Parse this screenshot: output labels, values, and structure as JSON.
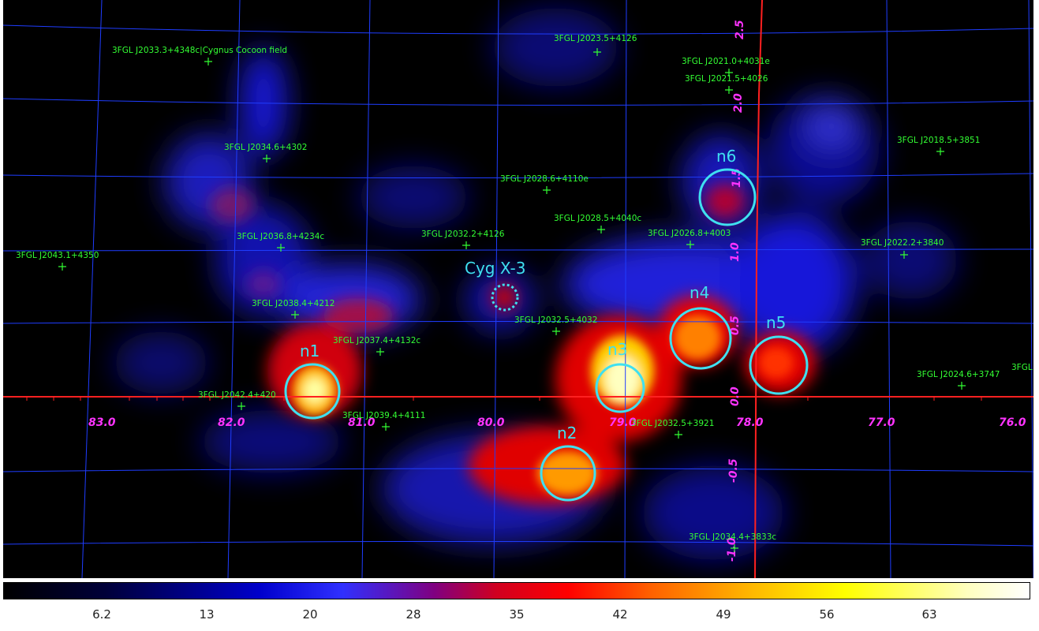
{
  "sources": [
    {
      "label": "3FGL J2033.3+4348c|Cygnus Cocoon field"
    },
    {
      "label": "3FGL J2023.5+4126"
    },
    {
      "label": "3FGL J2021.0+4031e"
    },
    {
      "label": "3FGL J2021.5+4026"
    },
    {
      "label": "3FGL J2034.6+4302"
    },
    {
      "label": "3FGL J2018.5+3851"
    },
    {
      "label": "3FGL J2028.6+4110e"
    },
    {
      "label": "3FGL J2028.5+4040c"
    },
    {
      "label": "3FGL J2036.8+4234c"
    },
    {
      "label": "3FGL J2032.2+4126"
    },
    {
      "label": "3FGL J2026.8+4003"
    },
    {
      "label": "3FGL J2022.2+3840"
    },
    {
      "label": "3FGL J2043.1+4350"
    },
    {
      "label": "3FGL J2038.4+4212"
    },
    {
      "label": "3FGL J2032.5+4032"
    },
    {
      "label": "3FGL J2037.4+4132c"
    },
    {
      "label": "3FGL J2024.6+3747"
    },
    {
      "label": "3FGL J2042.4+420"
    },
    {
      "label": "3FGL J2039.4+4111"
    },
    {
      "label": "3FGL J2032.5+3921"
    },
    {
      "label": "3FGL J2034.4+3833c"
    },
    {
      "label": "3FGL"
    }
  ],
  "regions": [
    {
      "label": "n1"
    },
    {
      "label": "n2"
    },
    {
      "label": "n3"
    },
    {
      "label": "n4"
    },
    {
      "label": "n5"
    },
    {
      "label": "n6"
    },
    {
      "label": "Cyg X-3"
    }
  ],
  "axes": {
    "gl_labels": [
      "83.0",
      "82.0",
      "81.0",
      "80.0",
      "79.0",
      "78.0",
      "77.0",
      "76.0"
    ],
    "gb_labels": [
      "2.5",
      "2.0",
      "1.5",
      "1.0",
      "0.5",
      "0.0",
      "-0.5",
      "-1.0"
    ]
  },
  "colorbar": {
    "ticks": [
      "6.2",
      "13",
      "20",
      "28",
      "35",
      "42",
      "49",
      "56",
      "63"
    ]
  },
  "colors": {
    "grid": "#1f3dff",
    "axis_line": "#ff2020",
    "source_marker": "#33ff33",
    "region": "#3fe0f0",
    "axis_label": "#ff33ff"
  }
}
